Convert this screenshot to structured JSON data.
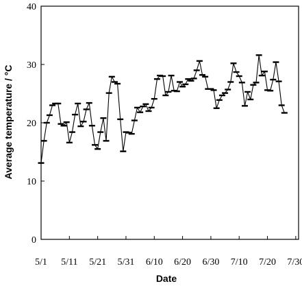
{
  "chart_data": {
    "type": "line",
    "title": "",
    "xlabel": "Date",
    "ylabel": "Average temperature / °C",
    "xlim": [
      "2024-05-01",
      "2024-07-31"
    ],
    "ylim": [
      0,
      40
    ],
    "grid": false,
    "legend": "none",
    "marker": "horizontal-dash",
    "line_color": "#000000",
    "y_ticks": [
      "0",
      "10",
      "20",
      "30",
      "40"
    ],
    "x_ticks": [
      {
        "date": "2024-05-01",
        "label": "5/1"
      },
      {
        "date": "2024-05-11",
        "label": "5/11"
      },
      {
        "date": "2024-05-21",
        "label": "5/21"
      },
      {
        "date": "2024-05-31",
        "label": "5/31"
      },
      {
        "date": "2024-06-10",
        "label": "6/10"
      },
      {
        "date": "2024-06-20",
        "label": "6/20"
      },
      {
        "date": "2024-06-30",
        "label": "6/30"
      },
      {
        "date": "2024-07-10",
        "label": "7/10"
      },
      {
        "date": "2024-07-20",
        "label": "7/20"
      },
      {
        "date": "2024-07-30",
        "label": "7/30"
      }
    ],
    "series": [
      {
        "start_date": "2024-05-01",
        "values": [
          13.1,
          16.9,
          20.0,
          21.3,
          23.0,
          23.3,
          23.3,
          19.8,
          19.5,
          20.1,
          16.6,
          18.4,
          21.4,
          23.3,
          19.4,
          20.2,
          22.3,
          23.4,
          19.5,
          16.2,
          15.5,
          18.4,
          20.8,
          16.9,
          25.1,
          27.9,
          27.0,
          26.7,
          20.6,
          15.1,
          18.4,
          18.3,
          18.1,
          20.4,
          22.6,
          21.8,
          22.8,
          23.2,
          22.0,
          22.6,
          24.1,
          27.5,
          28.1,
          28.0,
          24.7,
          25.3,
          28.1,
          25.5,
          25.4,
          27.0,
          26.2,
          26.6,
          27.5,
          27.2,
          27.6,
          29.0,
          30.6,
          28.2,
          27.9,
          25.8,
          25.8,
          25.6,
          22.5,
          23.9,
          24.7,
          25.1,
          25.7,
          27.0,
          30.2,
          28.7,
          28.0,
          26.9,
          22.9,
          25.3,
          24.0,
          26.5,
          26.9,
          31.6,
          28.1,
          28.8,
          25.6,
          25.5,
          27.4,
          30.4,
          27.1,
          23.0,
          21.7
        ]
      }
    ]
  }
}
